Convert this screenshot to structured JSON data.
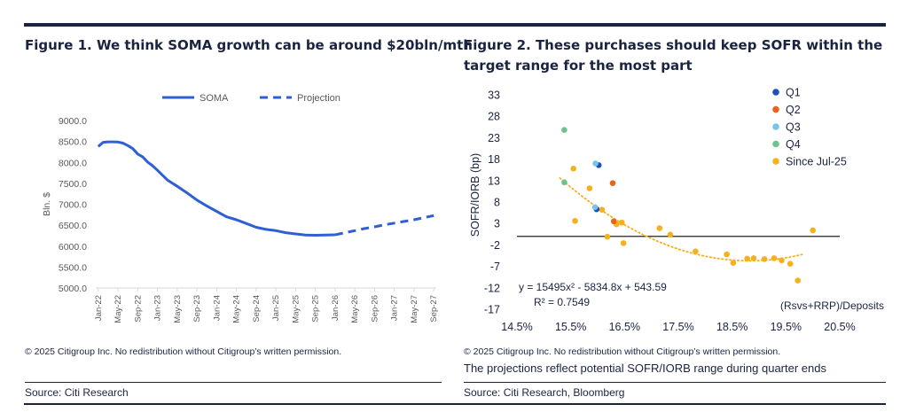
{
  "fig1": {
    "title": "Figure 1. We think SOMA growth can be around $20bln/mth",
    "copyright": "© 2025 Citigroup Inc. No redistribution without Citigroup’s written permission.",
    "source": "Source: Citi Research"
  },
  "fig2": {
    "title_line1": "Figure 2. These purchases should keep SOFR within the",
    "title_line2": "target range for the most part",
    "copyright": "© 2025 Citigroup Inc. No redistribution without Citigroup’s written permission.",
    "note": "The projections reflect potential SOFR/IORB range during quarter ends",
    "source": "Source: Citi Research, Bloomberg"
  },
  "chart_data": [
    {
      "type": "line",
      "ylabel": "Bln. $",
      "ylim": [
        5000,
        9000
      ],
      "yticks": [
        "9000.0",
        "8500.0",
        "8000.0",
        "7500.0",
        "7000.0",
        "6500.0",
        "6000.0",
        "5500.0",
        "5000.0"
      ],
      "xticks": [
        "Jan-22",
        "May-22",
        "Sep-22",
        "Jan-23",
        "May-23",
        "Sep-23",
        "Jan-24",
        "May-24",
        "Sep-24",
        "Jan-25",
        "May-25",
        "Sep-25",
        "Jan-26",
        "May-26",
        "Sep-26",
        "Jan-27",
        "May-27",
        "Sep-27"
      ],
      "legend_position": "top",
      "colors": {
        "line": "#2e5fd4",
        "axis": "#d9d9d9",
        "text": "#595959"
      },
      "series": [
        {
          "name": "SOMA",
          "style": "solid",
          "x_months": [
            0,
            1,
            2,
            3,
            4,
            5,
            6,
            7,
            8,
            9,
            10,
            11,
            12,
            14,
            16,
            18,
            20,
            22,
            24,
            26,
            28,
            30,
            32,
            34,
            36,
            38,
            40,
            42,
            44,
            46,
            48
          ],
          "values": [
            8380,
            8480,
            8490,
            8490,
            8485,
            8460,
            8400,
            8330,
            8200,
            8130,
            8010,
            7920,
            7810,
            7580,
            7430,
            7270,
            7100,
            6960,
            6830,
            6700,
            6630,
            6540,
            6450,
            6400,
            6370,
            6320,
            6290,
            6265,
            6260,
            6265,
            6270
          ]
        },
        {
          "name": "Projection",
          "style": "dashed",
          "x_months": [
            48,
            50,
            52,
            54,
            56,
            58,
            60,
            62,
            64,
            66,
            68
          ],
          "values": [
            6270,
            6320,
            6370,
            6420,
            6460,
            6510,
            6550,
            6590,
            6630,
            6680,
            6730
          ]
        }
      ]
    },
    {
      "type": "scatter",
      "xlabel": "(Rsvs+RRP)/Deposits",
      "ylabel": "SOFR/IORB (bp)",
      "xlim": [
        14.5,
        20.5
      ],
      "ylim": [
        -17,
        33
      ],
      "xticks": [
        "14.5%",
        "15.5%",
        "16.5%",
        "17.5%",
        "18.5%",
        "19.5%",
        "20.5%"
      ],
      "yticks": [
        "33",
        "28",
        "23",
        "18",
        "13",
        "8",
        "3",
        "-2",
        "-7",
        "-12",
        "-17"
      ],
      "legend_position": "top-right",
      "annotation_eq": "y = 15495x² - 5834.8x + 543.59",
      "annotation_r2": "R² = 0.7549",
      "trendline": {
        "a": 15495,
        "b": -5834.8,
        "c": 543.59,
        "x_range": [
          0.153,
          0.198
        ],
        "color": "#f5b01e",
        "style": "dotted"
      },
      "series": [
        {
          "name": "Q1",
          "color": "#1f4fbf",
          "points": [
            [
              16.02,
              16.6
            ],
            [
              15.98,
              6.3
            ]
          ]
        },
        {
          "name": "Q2",
          "color": "#e8631c",
          "points": [
            [
              16.28,
              12.4
            ],
            [
              16.3,
              3.5
            ]
          ]
        },
        {
          "name": "Q3",
          "color": "#79c3ea",
          "points": [
            [
              15.96,
              17.0
            ],
            [
              15.95,
              6.8
            ]
          ]
        },
        {
          "name": "Q4",
          "color": "#6cc48c",
          "points": [
            [
              15.38,
              24.8
            ],
            [
              15.38,
              12.6
            ]
          ]
        },
        {
          "name": "Since Jul-25",
          "color": "#f5b01e",
          "points": [
            [
              15.55,
              15.8
            ],
            [
              15.58,
              3.6
            ],
            [
              15.85,
              11.2
            ],
            [
              16.08,
              6.2
            ],
            [
              16.18,
              -0.1
            ],
            [
              16.35,
              2.8
            ],
            [
              16.45,
              3.2
            ],
            [
              16.48,
              -1.6
            ],
            [
              17.15,
              1.9
            ],
            [
              17.35,
              0.4
            ],
            [
              17.82,
              -3.5
            ],
            [
              18.4,
              -4.2
            ],
            [
              18.52,
              -6.2
            ],
            [
              18.78,
              -5.2
            ],
            [
              18.9,
              -5.1
            ],
            [
              19.1,
              -5.3
            ],
            [
              19.28,
              -5.1
            ],
            [
              19.42,
              -5.6
            ],
            [
              19.58,
              -6.4
            ],
            [
              19.72,
              -10.3
            ],
            [
              20.0,
              1.4
            ]
          ]
        }
      ]
    }
  ]
}
